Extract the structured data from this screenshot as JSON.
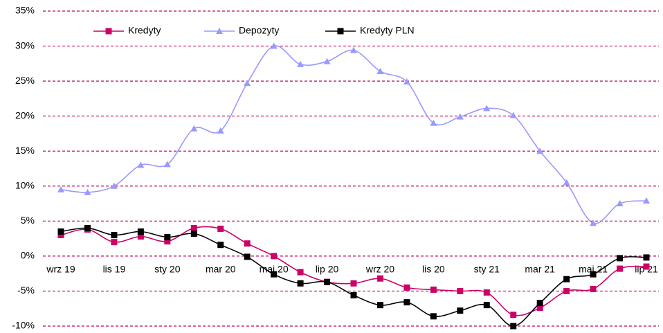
{
  "chart_data": {
    "type": "line",
    "categories": [
      "wrz 19",
      null,
      "lis 19",
      null,
      "sty 20",
      null,
      "mar 20",
      null,
      "maj 20",
      null,
      "lip 20",
      null,
      "wrz 20",
      null,
      "lis 20",
      null,
      "sty 21",
      null,
      "mar 21",
      null,
      "maj 21",
      null,
      "lip 21"
    ],
    "series": [
      {
        "name": "Kredyty",
        "color": "#cc0066",
        "marker": "square",
        "values": [
          3.0,
          3.8,
          2.0,
          2.8,
          2.1,
          4.0,
          3.9,
          1.8,
          0.0,
          -2.3,
          -3.7,
          -3.9,
          -3.2,
          -4.5,
          -4.8,
          -5.0,
          -5.2,
          -8.4,
          -7.4,
          -5.0,
          -4.7,
          -1.8,
          -1.5
        ]
      },
      {
        "name": "Depozyty",
        "color": "#9999ff",
        "marker": "triangle",
        "values": [
          9.5,
          9.1,
          10.0,
          13.0,
          13.1,
          18.2,
          17.9,
          24.7,
          30.0,
          27.4,
          27.8,
          29.4,
          26.4,
          24.9,
          19.0,
          19.9,
          21.1,
          20.1,
          15.0,
          10.5,
          4.7,
          7.5,
          7.9
        ]
      },
      {
        "name": "Kredyty PLN",
        "color": "#000000",
        "marker": "square",
        "values": [
          3.5,
          4.0,
          3.0,
          3.5,
          2.7,
          3.2,
          1.6,
          -0.1,
          -2.6,
          -3.9,
          -3.7,
          -5.6,
          -7.0,
          -6.6,
          -8.6,
          -7.8,
          -7.0,
          -10.0,
          -6.7,
          -3.3,
          -2.6,
          -0.3,
          -0.2
        ]
      }
    ],
    "ylim": [
      -10,
      35
    ],
    "yticks": [
      {
        "value": -10,
        "label": "-10%"
      },
      {
        "value": -5,
        "label": "-5%"
      },
      {
        "value": 0,
        "label": "0%"
      },
      {
        "value": 5,
        "label": "5%"
      },
      {
        "value": 10,
        "label": "10%"
      },
      {
        "value": 15,
        "label": "15%"
      },
      {
        "value": 20,
        "label": "20%"
      },
      {
        "value": 25,
        "label": "25%"
      },
      {
        "value": 30,
        "label": "30%"
      },
      {
        "value": 35,
        "label": "35%"
      }
    ],
    "grid": true,
    "smooth": true,
    "legend": "top"
  }
}
